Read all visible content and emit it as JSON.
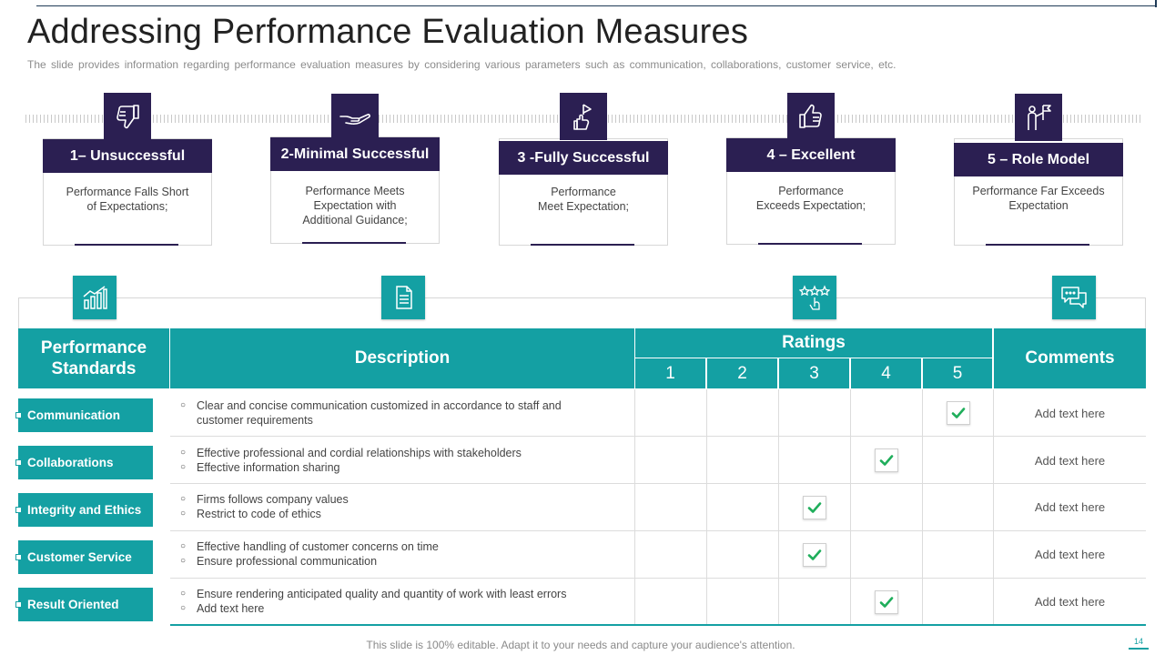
{
  "slide": {
    "title": "Addressing Performance Evaluation Measures",
    "subtitle": "The slide provides information regarding performance evaluation measures by considering various parameters such as communication, collaborations, customer service, etc.",
    "footer": "This slide is 100% editable. Adapt it to your needs and capture your audience's attention.",
    "page_number": "14"
  },
  "levels": [
    {
      "title": "1– Unsuccessful",
      "desc": [
        "Performance  Falls Short",
        "of Expectations;"
      ],
      "icon": "thumbs-down-icon"
    },
    {
      "title": "2-Minimal Successful",
      "desc": [
        "Performance  Meets",
        "Expectation with",
        "Additional Guidance;"
      ],
      "icon": "open-hand-icon"
    },
    {
      "title": "3 -Fully Successful",
      "desc": [
        "Performance",
        "Meet Expectation;"
      ],
      "icon": "flag-hand-icon"
    },
    {
      "title": "4 – Excellent",
      "desc": [
        "Performance",
        "Exceeds Expectation;"
      ],
      "icon": "thumbs-up-icon"
    },
    {
      "title": "5 – Role Model",
      "desc": [
        "Performance  Far Exceeds",
        "Expectation"
      ],
      "icon": "person-flag-icon"
    }
  ],
  "table": {
    "headers": {
      "standards": [
        "Performance",
        "Standards"
      ],
      "description": "Description",
      "ratings": "Ratings",
      "rating_numbers": [
        "1",
        "2",
        "3",
        "4",
        "5"
      ],
      "comments": "Comments"
    },
    "header_icons": [
      "growth-chart-icon",
      "document-icon",
      "rating-stars-icon",
      "chat-bubbles-icon"
    ],
    "rows": [
      {
        "standard": "Communication",
        "bullets": [
          "Clear and concise communication customized in accordance to staff and",
          "customer requirements"
        ],
        "bullet_lines": [
          true,
          false
        ],
        "rating": 5,
        "comment": "Add text here"
      },
      {
        "standard": "Collaborations",
        "bullets": [
          "Effective professional  and cordial relationships with stakeholders",
          "Effective information  sharing"
        ],
        "bullet_lines": [
          true,
          true
        ],
        "rating": 4,
        "comment": "Add text here"
      },
      {
        "standard": "Integrity and Ethics",
        "bullets": [
          "Firms follows company values",
          "Restrict to code of ethics"
        ],
        "bullet_lines": [
          true,
          true
        ],
        "rating": 3,
        "comment": "Add text here"
      },
      {
        "standard": "Customer  Service",
        "bullets": [
          "Effective handling of customer concerns on time",
          "Ensure professional communication"
        ],
        "bullet_lines": [
          true,
          true
        ],
        "rating": 3,
        "comment": "Add text here"
      },
      {
        "standard": "Result Oriented",
        "bullets": [
          "Ensure rendering anticipated quality and quantity of work with least errors",
          "Add text here"
        ],
        "bullet_lines": [
          true,
          true
        ],
        "rating": 4,
        "comment": "Add text here"
      }
    ]
  },
  "colors": {
    "navy": "#2b1f52",
    "teal": "#14a0a3",
    "check_green": "#1fae5b"
  }
}
